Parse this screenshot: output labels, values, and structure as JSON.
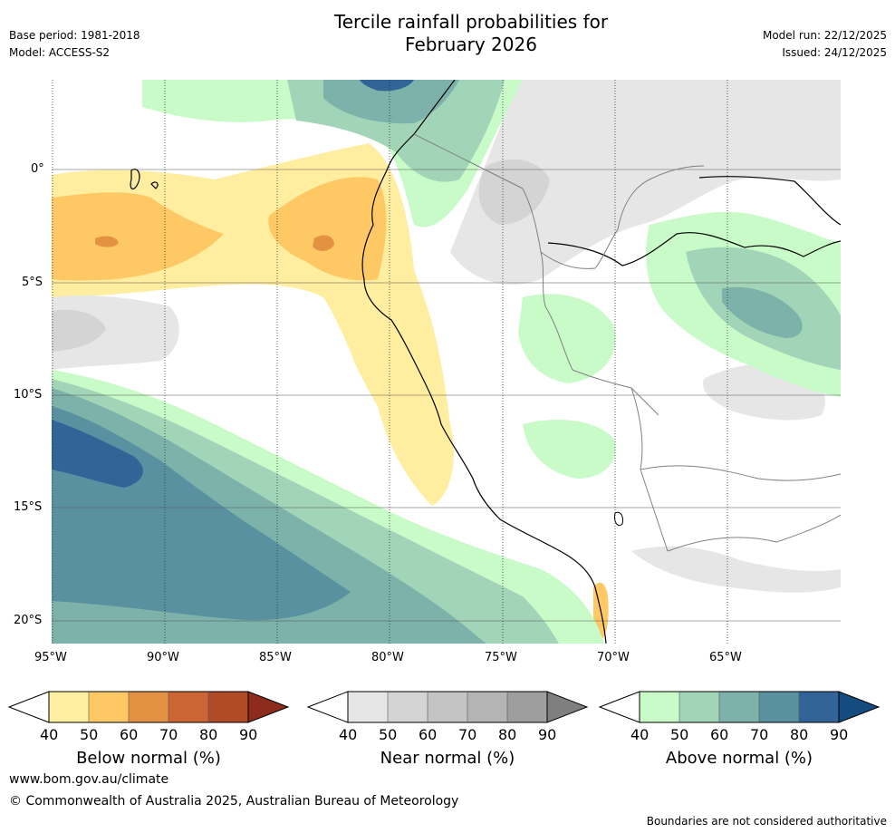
{
  "header": {
    "base_period": "Base period: 1981-2018",
    "model": "Model: ACCESS-S2",
    "title_line1": "Tercile rainfall probabilities for",
    "title_line2": "February 2026",
    "model_run": "Model run: 22/12/2025",
    "issued": "Issued: 24/12/2025"
  },
  "map": {
    "lat_labels": [
      "0°",
      "5°S",
      "10°S",
      "15°S",
      "20°S"
    ],
    "lon_labels": [
      "95°W",
      "90°W",
      "85°W",
      "80°W",
      "75°W",
      "70°W",
      "65°W"
    ]
  },
  "chart_data": {
    "type": "heatmap",
    "title": "Tercile rainfall probabilities for February 2026",
    "lon_range": [
      -95,
      -60
    ],
    "lat_range": [
      -21,
      4
    ],
    "x_ticks": [
      -95,
      -90,
      -85,
      -80,
      -75,
      -70,
      -65
    ],
    "y_ticks": [
      0,
      -5,
      -10,
      -15,
      -20
    ],
    "legends": [
      {
        "name": "Below normal (%)",
        "levels": [
          40,
          50,
          60,
          70,
          80,
          90
        ],
        "colors": [
          "#ffeda0",
          "#fec965",
          "#e39244",
          "#cb6533",
          "#b04a27",
          "#8e2b1c"
        ]
      },
      {
        "name": "Near normal (%)",
        "levels": [
          40,
          50,
          60,
          70,
          80,
          90
        ],
        "colors": [
          "#e6e6e6",
          "#d4d4d4",
          "#c4c4c4",
          "#b4b4b4",
          "#9e9e9e",
          "#7f7f7f"
        ]
      },
      {
        "name": "Above normal (%)",
        "levels": [
          40,
          50,
          60,
          70,
          80,
          90
        ],
        "colors": [
          "#c8fbc8",
          "#a2d5b8",
          "#7db2ab",
          "#5a91a0",
          "#336497",
          "#144c80"
        ]
      }
    ]
  },
  "legend_labels": [
    "Below normal (%)",
    "Near normal (%)",
    "Above normal (%)"
  ],
  "legend_ticks": [
    "40",
    "50",
    "60",
    "70",
    "80",
    "90"
  ],
  "footer": {
    "url": "www.bom.gov.au/climate",
    "copyright": "© Commonwealth of Australia 2025, Australian Bureau of Meteorology",
    "disclaimer": "Boundaries are not considered authoritative"
  }
}
